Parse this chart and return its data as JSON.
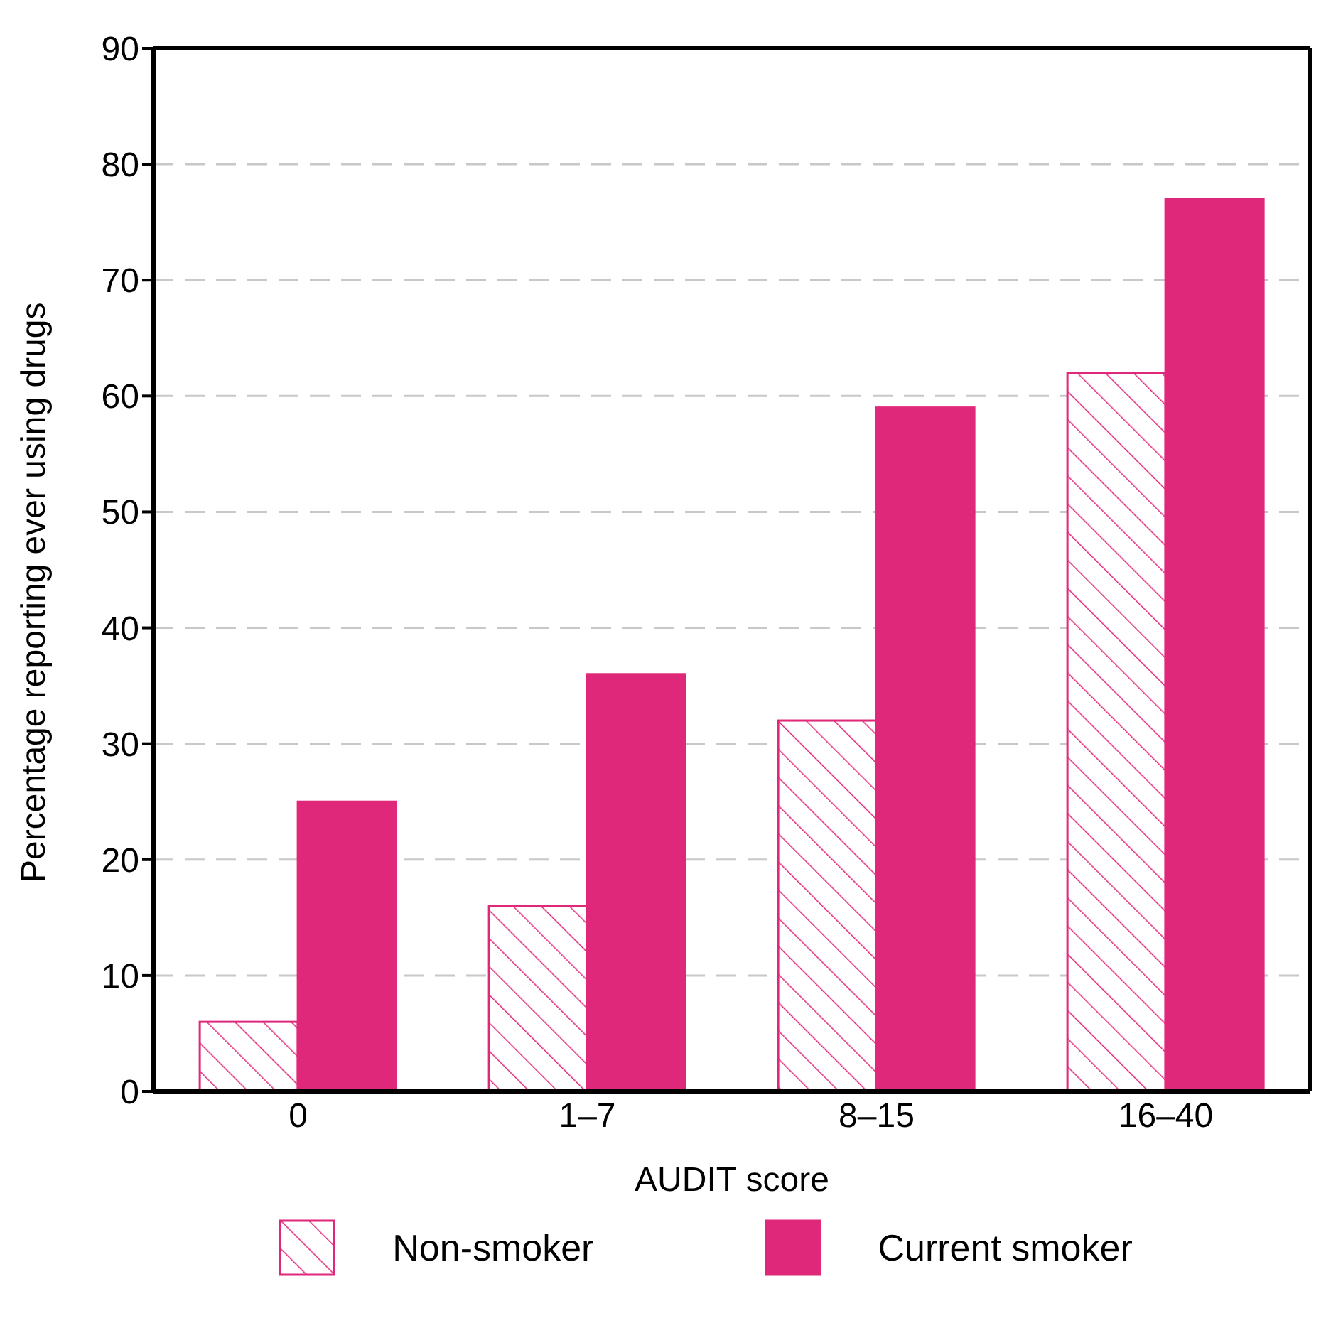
{
  "chart_data": {
    "type": "bar",
    "xlabel": "AUDIT score",
    "ylabel": "Percentage reporting ever using drugs",
    "categories": [
      "0",
      "1–7",
      "8–15",
      "16–40"
    ],
    "series": [
      {
        "name": "Non-smoker",
        "color": "#e0287a",
        "values": [
          6,
          16,
          32,
          62
        ]
      },
      {
        "name": "Current smoker",
        "color": "#e0287a",
        "values": [
          25,
          36,
          59,
          77
        ]
      }
    ],
    "ylim": [
      0,
      90
    ],
    "yticks": [
      0,
      10,
      20,
      30,
      40,
      50,
      60,
      70,
      80,
      90
    ],
    "grid": "y",
    "legend": "bottom"
  }
}
